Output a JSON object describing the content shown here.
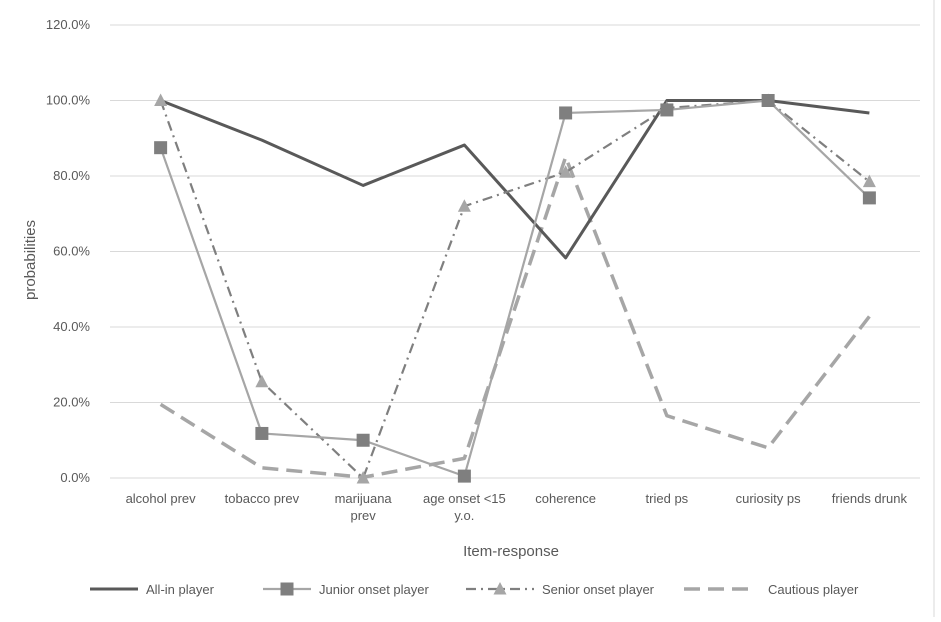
{
  "chart_data": {
    "type": "line",
    "title": "",
    "xlabel": "Item-response",
    "ylabel": "probabilities",
    "ylim": [
      0,
      1.2
    ],
    "yticks": [
      "0.0%",
      "20.0%",
      "40.0%",
      "60.0%",
      "80.0%",
      "100.0%",
      "120.0%"
    ],
    "ytick_values": [
      0,
      0.2,
      0.4,
      0.6,
      0.8,
      1.0,
      1.2
    ],
    "categories": [
      [
        "alcohol prev"
      ],
      [
        "tobacco prev"
      ],
      [
        "marijuana",
        "prev"
      ],
      [
        "age onset <15",
        "y.o."
      ],
      [
        "coherence"
      ],
      [
        "tried ps"
      ],
      [
        "curiosity ps"
      ],
      [
        "friends drunk"
      ]
    ],
    "grid": "horizontal",
    "legend_position": "bottom",
    "series": [
      {
        "name": "All-in player",
        "values": [
          1.0,
          0.895,
          0.775,
          0.882,
          0.583,
          1.0,
          1.0,
          0.967
        ],
        "color": "#595959",
        "style": "solid",
        "marker": "none"
      },
      {
        "name": "Junior onset player",
        "values": [
          0.875,
          0.118,
          0.1,
          0.005,
          0.967,
          0.975,
          1.0,
          0.742
        ],
        "color": "#a6a6a6",
        "marker_color": "#7f7f7f",
        "style": "solid",
        "marker": "square"
      },
      {
        "name": "Senior onset player",
        "values": [
          1.0,
          0.255,
          0.0,
          0.72,
          0.81,
          0.98,
          1.0,
          0.785
        ],
        "color": "#7f7f7f",
        "marker_color": "#a6a6a6",
        "style": "dashdot",
        "marker": "triangle"
      },
      {
        "name": "Cautious player",
        "values": [
          0.195,
          0.027,
          0.002,
          0.052,
          0.85,
          0.165,
          0.08,
          0.428
        ],
        "color": "#a6a6a6",
        "style": "longdash",
        "marker": "none"
      }
    ]
  }
}
